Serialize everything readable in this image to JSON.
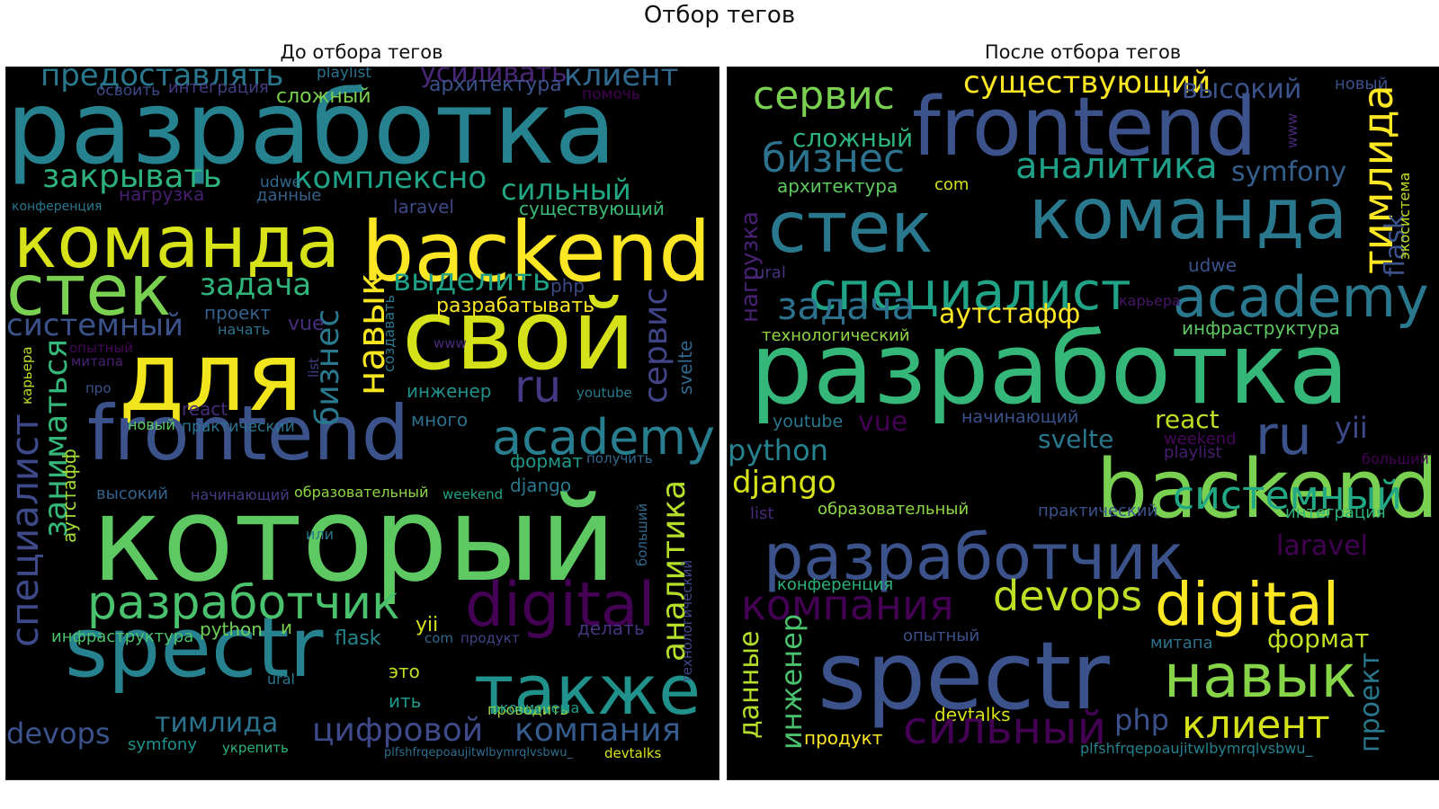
{
  "figure": {
    "title": "Отбор тегов"
  },
  "panels": [
    {
      "title": "До отбора тегов",
      "words": [
        {
          "text": "разработка",
          "color": "#26828e"
        },
        {
          "text": "команда",
          "color": "#d8e219"
        },
        {
          "text": "backend",
          "color": "#fde725"
        },
        {
          "text": "стек",
          "color": "#7ad151"
        },
        {
          "text": "для",
          "color": "#f1e51d"
        },
        {
          "text": "свой",
          "color": "#d5e21a"
        },
        {
          "text": "frontend",
          "color": "#3b528b"
        },
        {
          "text": "который",
          "color": "#5ec962"
        },
        {
          "text": "spectr",
          "color": "#26828e"
        },
        {
          "text": "также",
          "color": "#21918c"
        },
        {
          "text": "digital",
          "color": "#440154"
        },
        {
          "text": "разработчик",
          "color": "#4ac16d"
        },
        {
          "text": "специалист",
          "color": "#3e4989"
        },
        {
          "text": "academy",
          "color": "#287d8e"
        },
        {
          "text": "предоставлять",
          "color": "#2a788e"
        },
        {
          "text": "клиент",
          "color": "#31688e"
        },
        {
          "text": "усиливать",
          "color": "#482777"
        },
        {
          "text": "закрывать",
          "color": "#2db27d"
        },
        {
          "text": "комплексно",
          "color": "#20a386"
        },
        {
          "text": "сильный",
          "color": "#22a884"
        },
        {
          "text": "задача",
          "color": "#2fb47c"
        },
        {
          "text": "выделить",
          "color": "#1fa187"
        },
        {
          "text": "системный",
          "color": "#3b528b"
        },
        {
          "text": "навык",
          "color": "#f8e621"
        },
        {
          "text": "бизнес",
          "color": "#2a788e"
        },
        {
          "text": "сервис",
          "color": "#414487"
        },
        {
          "text": "ru",
          "color": "#443983"
        },
        {
          "text": "заниматься",
          "color": "#35b779"
        },
        {
          "text": "аналитика",
          "color": "#b5de2b"
        },
        {
          "text": "цифровой",
          "color": "#3e4a89"
        },
        {
          "text": "компания",
          "color": "#365c8d"
        },
        {
          "text": "тимлида",
          "color": "#2c728e"
        },
        {
          "text": "devops",
          "color": "#3b528b"
        },
        {
          "text": "архитектура",
          "color": "#3b528b"
        },
        {
          "text": "сложный",
          "color": "#7ad151"
        },
        {
          "text": "интеграция",
          "color": "#433e85"
        },
        {
          "text": "playlist",
          "color": "#2c728e"
        },
        {
          "text": "освоить",
          "color": "#3e4989"
        },
        {
          "text": "помочь",
          "color": "#440154"
        },
        {
          "text": "нагрузка",
          "color": "#481f70"
        },
        {
          "text": "udwe",
          "color": "#31688e"
        },
        {
          "text": "данные",
          "color": "#33638d"
        },
        {
          "text": "конференция",
          "color": "#2a788e"
        },
        {
          "text": "laravel",
          "color": "#3e4989"
        },
        {
          "text": "существующий",
          "color": "#3bbb75"
        },
        {
          "text": "php",
          "color": "#3e4989"
        },
        {
          "text": "проект",
          "color": "#355f8d"
        },
        {
          "text": "начать",
          "color": "#2c728e"
        },
        {
          "text": "разрабатывать",
          "color": "#fde725"
        },
        {
          "text": "vue",
          "color": "#472d7b"
        },
        {
          "text": "создавать",
          "color": "#2a788e"
        },
        {
          "text": "list",
          "color": "#424086"
        },
        {
          "text": "svelte",
          "color": "#31688e"
        },
        {
          "text": "опытный",
          "color": "#46075a"
        },
        {
          "text": "митапа",
          "color": "#482173"
        },
        {
          "text": "www",
          "color": "#482878"
        },
        {
          "text": "карьера",
          "color": "#bddf26"
        },
        {
          "text": "про",
          "color": "#3b528b"
        },
        {
          "text": "инженер",
          "color": "#21918c"
        },
        {
          "text": "youtube",
          "color": "#287c8e"
        },
        {
          "text": "много",
          "color": "#2c728e"
        },
        {
          "text": "новый",
          "color": "#5ec962"
        },
        {
          "text": "react",
          "color": "#472c7a"
        },
        {
          "text": "практический",
          "color": "#2c728e"
        },
        {
          "text": "аутстафф",
          "color": "#a5db36"
        },
        {
          "text": "формат",
          "color": "#1f998a"
        },
        {
          "text": "получить",
          "color": "#31688e"
        },
        {
          "text": "высокий",
          "color": "#33638d"
        },
        {
          "text": "начинающий",
          "color": "#433e85"
        },
        {
          "text": "образовательный",
          "color": "#8fd744"
        },
        {
          "text": "weekend",
          "color": "#20a486"
        },
        {
          "text": "django",
          "color": "#29798e"
        },
        {
          "text": "или",
          "color": "#2a788e"
        },
        {
          "text": "больший",
          "color": "#31688e"
        },
        {
          "text": "технологический",
          "color": "#3e4989"
        },
        {
          "text": "инфраструктура",
          "color": "#4ac16d"
        },
        {
          "text": "python",
          "color": "#70cf57"
        },
        {
          "text": "и",
          "color": "#7ad151"
        },
        {
          "text": "flask",
          "color": "#24878e"
        },
        {
          "text": "yii",
          "color": "#d8e219"
        },
        {
          "text": "com",
          "color": "#31688e"
        },
        {
          "text": "продукт",
          "color": "#414487"
        },
        {
          "text": "делать",
          "color": "#46337f"
        },
        {
          "text": "ural",
          "color": "#2a788e"
        },
        {
          "text": "это",
          "color": "#bddf26"
        },
        {
          "text": "ить",
          "color": "#1f988b"
        },
        {
          "text": "проводить",
          "color": "#95d840"
        },
        {
          "text": "экосистема",
          "color": "#1e9c89"
        },
        {
          "text": "symfony",
          "color": "#20928c"
        },
        {
          "text": "укрепить",
          "color": "#2fb47c"
        },
        {
          "text": "plfshfrqepoaujitwlbymrqlvsbwu_",
          "color": "#2e6e8e"
        },
        {
          "text": "devtalks",
          "color": "#d8e219"
        }
      ]
    },
    {
      "title": "После отбора тегов",
      "words": [
        {
          "text": "сервис",
          "color": "#7ad151"
        },
        {
          "text": "существующий",
          "color": "#fde725"
        },
        {
          "text": "высокий",
          "color": "#3b528b"
        },
        {
          "text": "новый",
          "color": "#3b528b"
        },
        {
          "text": "frontend",
          "color": "#3b528b"
        },
        {
          "text": "тимлида",
          "color": "#fde725"
        },
        {
          "text": "сложный",
          "color": "#2db27d"
        },
        {
          "text": "бизнес",
          "color": "#2c728e"
        },
        {
          "text": "аналитика",
          "color": "#1fa187"
        },
        {
          "text": "symfony",
          "color": "#355f8d"
        },
        {
          "text": "www",
          "color": "#482677"
        },
        {
          "text": "flask",
          "color": "#3b528b"
        },
        {
          "text": "экосистема",
          "color": "#bddf26"
        },
        {
          "text": "архитектура",
          "color": "#5ec962"
        },
        {
          "text": "com",
          "color": "#d5e21a"
        },
        {
          "text": "стек",
          "color": "#2a788e"
        },
        {
          "text": "команда",
          "color": "#2a788e"
        },
        {
          "text": "нагрузка",
          "color": "#482173"
        },
        {
          "text": "специалист",
          "color": "#20a386"
        },
        {
          "text": "ural",
          "color": "#46327e"
        },
        {
          "text": "udwe",
          "color": "#3b528b"
        },
        {
          "text": "academy",
          "color": "#2a788e"
        },
        {
          "text": "задача",
          "color": "#2c728e"
        },
        {
          "text": "аутстафф",
          "color": "#fde725"
        },
        {
          "text": "карьера",
          "color": "#481668"
        },
        {
          "text": "инфраструктура",
          "color": "#5ec962"
        },
        {
          "text": "технологический",
          "color": "#8fd744"
        },
        {
          "text": "разработка",
          "color": "#35b779"
        },
        {
          "text": "youtube",
          "color": "#2a788e"
        },
        {
          "text": "vue",
          "color": "#440154"
        },
        {
          "text": "начинающий",
          "color": "#3b528b"
        },
        {
          "text": "react",
          "color": "#bddf26"
        },
        {
          "text": "ru",
          "color": "#3b528b"
        },
        {
          "text": "yii",
          "color": "#3e4989"
        },
        {
          "text": "python",
          "color": "#26828e"
        },
        {
          "text": "backend",
          "color": "#7ad151"
        },
        {
          "text": "svelte",
          "color": "#2a788e"
        },
        {
          "text": "weekend",
          "color": "#46085c"
        },
        {
          "text": "playlist",
          "color": "#481f70"
        },
        {
          "text": "больший",
          "color": "#440154"
        },
        {
          "text": "django",
          "color": "#d8e219"
        },
        {
          "text": "системный",
          "color": "#22a884"
        },
        {
          "text": "list",
          "color": "#482878"
        },
        {
          "text": "образовательный",
          "color": "#8fd744"
        },
        {
          "text": "практический",
          "color": "#3b528b"
        },
        {
          "text": "интеграция",
          "color": "#2fb47c"
        },
        {
          "text": "разработчик",
          "color": "#3b528b"
        },
        {
          "text": "laravel",
          "color": "#440154"
        },
        {
          "text": "компания",
          "color": "#440154"
        },
        {
          "text": "конференция",
          "color": "#2db27d"
        },
        {
          "text": "devops",
          "color": "#bddf26"
        },
        {
          "text": "digital",
          "color": "#fde725"
        },
        {
          "text": "инженер",
          "color": "#4ac16d"
        },
        {
          "text": "данные",
          "color": "#b5de2b"
        },
        {
          "text": "spectr",
          "color": "#3b528b"
        },
        {
          "text": "опытный",
          "color": "#3b528b"
        },
        {
          "text": "навык",
          "color": "#86d549"
        },
        {
          "text": "формат",
          "color": "#c2df23"
        },
        {
          "text": "митапа",
          "color": "#2c728e"
        },
        {
          "text": "проект",
          "color": "#2a788e"
        },
        {
          "text": "devtalks",
          "color": "#d8e219"
        },
        {
          "text": "php",
          "color": "#3b528b"
        },
        {
          "text": "клиент",
          "color": "#d5e21a"
        },
        {
          "text": "продукт",
          "color": "#fde725"
        },
        {
          "text": "сильный",
          "color": "#440154"
        },
        {
          "text": "plfshfrqepoaujitwlbymrqlvsbwu_",
          "color": "#26828e"
        }
      ]
    }
  ]
}
